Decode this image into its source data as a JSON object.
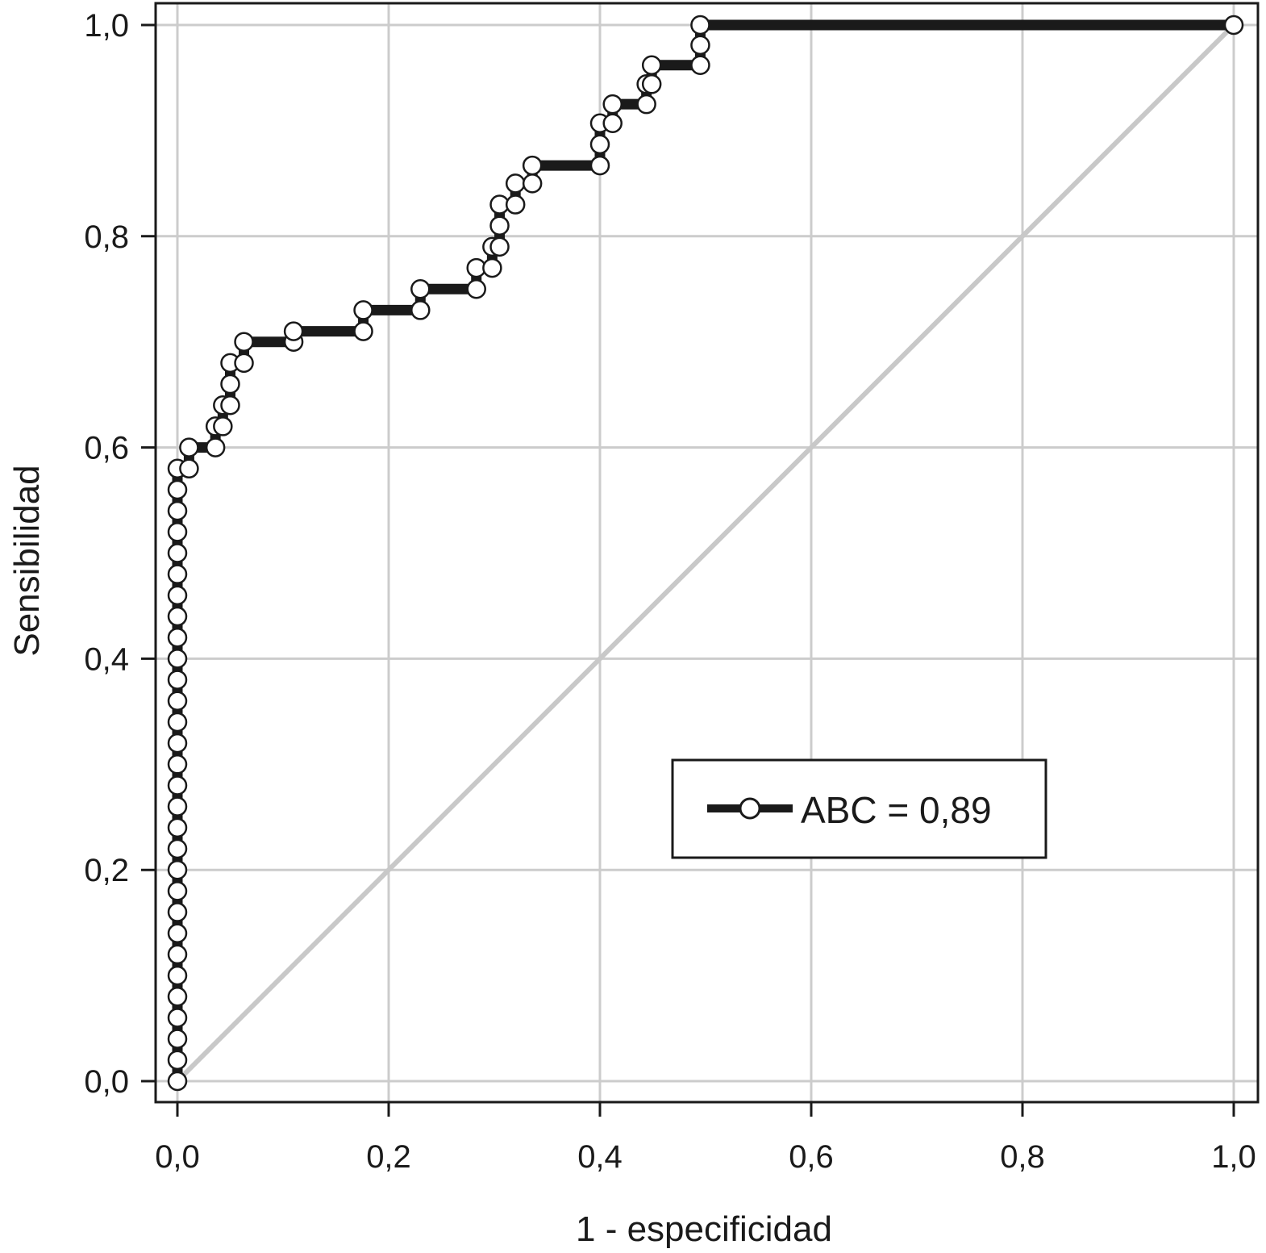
{
  "chart_data": {
    "type": "line",
    "xlabel": "1 - especificidad",
    "ylabel": "Sensibilidad",
    "xlim": [
      0,
      1
    ],
    "ylim": [
      0,
      1
    ],
    "grid": true,
    "xticks": [
      "0,0",
      "0,2",
      "0,4",
      "0,6",
      "0,8",
      "1,0"
    ],
    "yticks": [
      "0,0",
      "0,2",
      "0,4",
      "0,6",
      "0,8",
      "1,0"
    ],
    "legend_position": "bottom-right",
    "colors": {
      "series": "#1a1a1a",
      "marker_fill": "#ffffff",
      "reference": "#c8c8c8",
      "grid": "#cccccc"
    },
    "series": [
      {
        "name": "ABC = 0,89",
        "points": [
          [
            0.0,
            0.0
          ],
          [
            0.0,
            0.02
          ],
          [
            0.0,
            0.04
          ],
          [
            0.0,
            0.06
          ],
          [
            0.0,
            0.08
          ],
          [
            0.0,
            0.1
          ],
          [
            0.0,
            0.12
          ],
          [
            0.0,
            0.14
          ],
          [
            0.0,
            0.16
          ],
          [
            0.0,
            0.18
          ],
          [
            0.0,
            0.2
          ],
          [
            0.0,
            0.22
          ],
          [
            0.0,
            0.24
          ],
          [
            0.0,
            0.26
          ],
          [
            0.0,
            0.28
          ],
          [
            0.0,
            0.3
          ],
          [
            0.0,
            0.32
          ],
          [
            0.0,
            0.34
          ],
          [
            0.0,
            0.36
          ],
          [
            0.0,
            0.38
          ],
          [
            0.0,
            0.4
          ],
          [
            0.0,
            0.42
          ],
          [
            0.0,
            0.44
          ],
          [
            0.0,
            0.46
          ],
          [
            0.0,
            0.48
          ],
          [
            0.0,
            0.5
          ],
          [
            0.0,
            0.52
          ],
          [
            0.0,
            0.54
          ],
          [
            0.0,
            0.56
          ],
          [
            0.0,
            0.58
          ],
          [
            0.011,
            0.58
          ],
          [
            0.011,
            0.6
          ],
          [
            0.036,
            0.6
          ],
          [
            0.036,
            0.62
          ],
          [
            0.043,
            0.62
          ],
          [
            0.043,
            0.64
          ],
          [
            0.05,
            0.64
          ],
          [
            0.05,
            0.66
          ],
          [
            0.05,
            0.68
          ],
          [
            0.063,
            0.68
          ],
          [
            0.063,
            0.7
          ],
          [
            0.11,
            0.7
          ],
          [
            0.11,
            0.71
          ],
          [
            0.176,
            0.71
          ],
          [
            0.176,
            0.73
          ],
          [
            0.23,
            0.73
          ],
          [
            0.23,
            0.75
          ],
          [
            0.283,
            0.75
          ],
          [
            0.283,
            0.77
          ],
          [
            0.298,
            0.77
          ],
          [
            0.298,
            0.79
          ],
          [
            0.305,
            0.79
          ],
          [
            0.305,
            0.81
          ],
          [
            0.305,
            0.83
          ],
          [
            0.32,
            0.83
          ],
          [
            0.32,
            0.85
          ],
          [
            0.336,
            0.85
          ],
          [
            0.336,
            0.867
          ],
          [
            0.4,
            0.867
          ],
          [
            0.4,
            0.887
          ],
          [
            0.4,
            0.907
          ],
          [
            0.412,
            0.907
          ],
          [
            0.412,
            0.925
          ],
          [
            0.444,
            0.925
          ],
          [
            0.444,
            0.944
          ],
          [
            0.449,
            0.944
          ],
          [
            0.449,
            0.962
          ],
          [
            0.495,
            0.962
          ],
          [
            0.495,
            0.981
          ],
          [
            0.495,
            1.0
          ],
          [
            1.0,
            1.0
          ]
        ]
      },
      {
        "name": "",
        "points": [
          [
            0,
            0
          ],
          [
            1,
            1
          ]
        ]
      }
    ],
    "legend": {
      "label": "ABC = 0,89"
    }
  }
}
